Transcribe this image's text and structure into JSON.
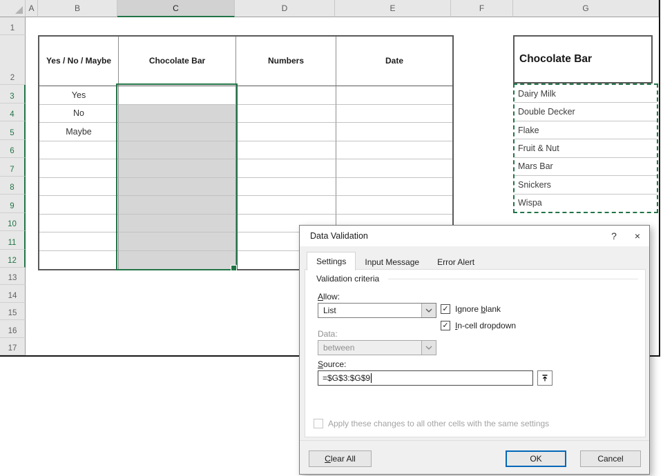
{
  "colors": {
    "excel_green": "#217346",
    "selection_fill": "#d6d6d6",
    "ok_button_border": "#0067b8",
    "marching_ants": "#217346"
  },
  "icons": {
    "check_glyph": "✓",
    "help_glyph": "?",
    "close_glyph": "×",
    "chevron": "chevron-down-icon",
    "collapse": "collapse-dialog-arrow-icon"
  },
  "sheet": {
    "column_headers": [
      "A",
      "B",
      "C",
      "D",
      "E",
      "F",
      "G"
    ],
    "selected_column": "C",
    "row_headers": [
      "1",
      "2",
      "3",
      "4",
      "5",
      "6",
      "7",
      "8",
      "9",
      "10",
      "11",
      "12",
      "13",
      "14",
      "15",
      "16",
      "17"
    ],
    "selection": {
      "range": "C3:C12",
      "active_cell": "C3",
      "selected_row_start": 3,
      "selected_row_end": 12
    },
    "table": {
      "headers": [
        "Yes / No / Maybe",
        "Chocolate Bar",
        "Numbers",
        "Date"
      ],
      "rows": [
        [
          "Yes",
          "",
          "",
          ""
        ],
        [
          "No",
          "",
          "",
          ""
        ],
        [
          "Maybe",
          "",
          "",
          ""
        ],
        [
          "",
          "",
          "",
          ""
        ],
        [
          "",
          "",
          "",
          ""
        ],
        [
          "",
          "",
          "",
          ""
        ],
        [
          "",
          "",
          "",
          ""
        ],
        [
          "",
          "",
          "",
          ""
        ],
        [
          "",
          "",
          "",
          ""
        ],
        [
          "",
          "",
          "",
          ""
        ]
      ]
    },
    "source_list": {
      "title": "Chocolate Bar",
      "items": [
        "Dairy Milk",
        "Double Decker",
        "Flake",
        "Fruit & Nut",
        "Mars Bar",
        "Snickers",
        "Wispa"
      ]
    }
  },
  "dialog": {
    "title": "Data Validation",
    "tabs": [
      "Settings",
      "Input Message",
      "Error Alert"
    ],
    "active_tab": "Settings",
    "group_label": "Validation criteria",
    "allow": {
      "key": "A",
      "rest": "llow:",
      "value": "List"
    },
    "ignore_blank": {
      "pre": "Ignore ",
      "key": "b",
      "rest": "lank",
      "checked": true
    },
    "incell_dropdown": {
      "key": "I",
      "rest": "n-cell dropdown",
      "checked": true
    },
    "data_field": {
      "label": "Data:",
      "value": "between",
      "disabled": true
    },
    "source": {
      "key": "S",
      "rest": "ource:",
      "value": "=$G$3:$G$9"
    },
    "apply_checkbox": {
      "label": "Apply these changes to all other cells with the same settings",
      "checked": false
    },
    "buttons": {
      "clear_all": {
        "key": "C",
        "rest": "lear All"
      },
      "ok": "OK",
      "cancel": "Cancel"
    }
  }
}
